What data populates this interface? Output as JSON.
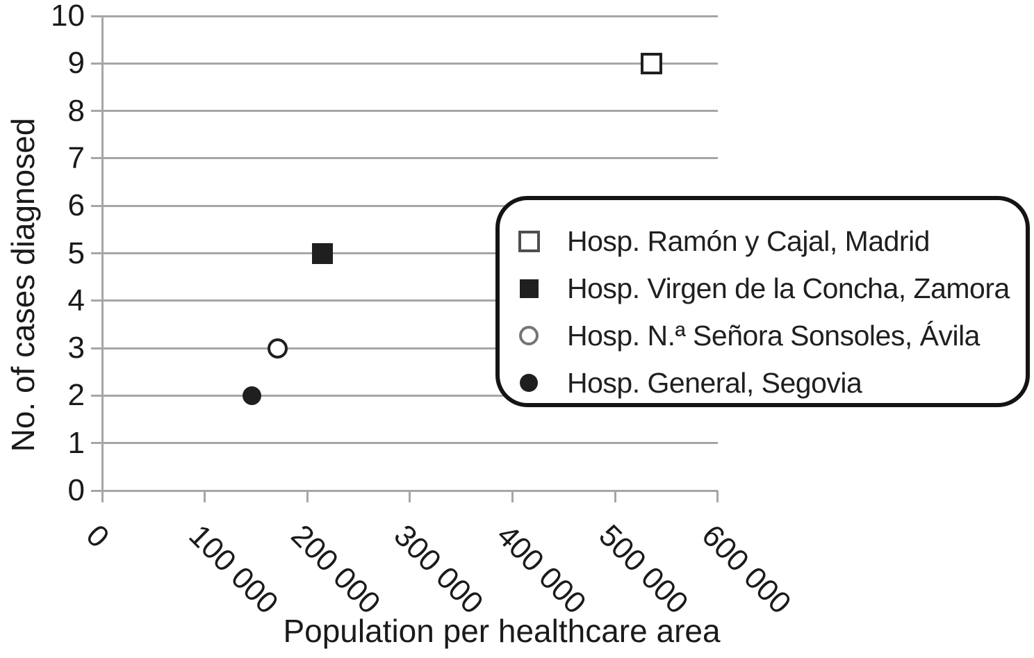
{
  "figure": {
    "background_color": "#ffffff",
    "text_color": "#1a1a1a",
    "gridline_color": "#a6a6a6",
    "marker_color": "#1f1f1f",
    "legend_border_color": "#141414"
  },
  "chart_data": {
    "type": "scatter",
    "title": "",
    "xlabel": "Population per healthcare area",
    "ylabel": "No. of cases diagnosed",
    "xlim": [
      0,
      600000
    ],
    "ylim": [
      0,
      10
    ],
    "x_ticks": [
      0,
      100000,
      200000,
      300000,
      400000,
      500000,
      600000
    ],
    "x_tick_labels": [
      "0",
      "100 000",
      "200 000",
      "300 000",
      "400 000",
      "500 000",
      "600 000"
    ],
    "y_ticks": [
      0,
      1,
      2,
      3,
      4,
      5,
      6,
      7,
      8,
      9,
      10
    ],
    "y_tick_labels": [
      "0",
      "1",
      "2",
      "3",
      "4",
      "5",
      "6",
      "7",
      "8",
      "9",
      "10"
    ],
    "grid": "horizontal gridlines on",
    "legend_position": "inside right, rounded black-bordered box",
    "series": [
      {
        "name": "Hosp. Ramón y Cajal, Madrid",
        "marker": "open-square",
        "points": [
          {
            "x": 535000,
            "y": 9
          }
        ]
      },
      {
        "name": "Hosp. Virgen de la Concha, Zamora",
        "marker": "filled-square",
        "points": [
          {
            "x": 215000,
            "y": 5
          }
        ]
      },
      {
        "name": "Hosp. N.ª Señora Sonsoles, Ávila",
        "marker": "open-circle",
        "points": [
          {
            "x": 171000,
            "y": 3
          }
        ]
      },
      {
        "name": "Hosp. General, Segovia",
        "marker": "filled-circle",
        "points": [
          {
            "x": 146000,
            "y": 2
          }
        ]
      }
    ]
  }
}
